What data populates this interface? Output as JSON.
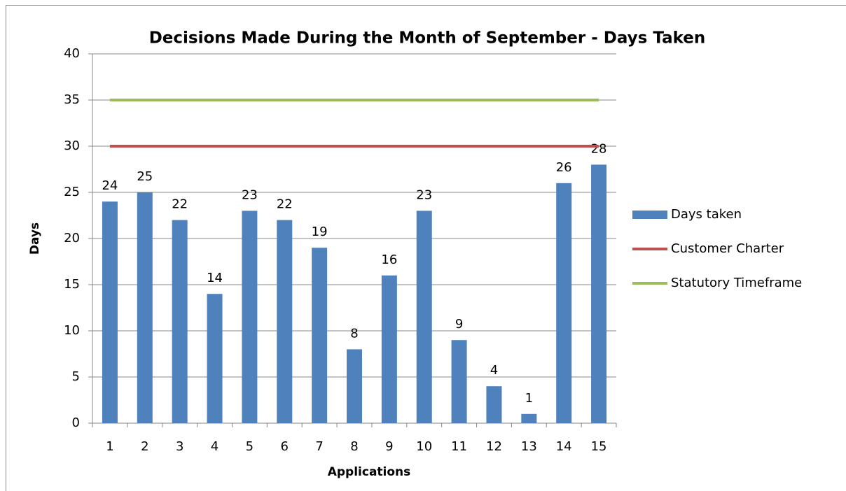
{
  "chart_data": {
    "type": "bar",
    "title": "Decisions Made During the Month of September - Days Taken",
    "xlabel": "Applications",
    "ylabel": "Days",
    "categories": [
      "1",
      "2",
      "3",
      "4",
      "5",
      "6",
      "7",
      "8",
      "9",
      "10",
      "11",
      "12",
      "13",
      "14",
      "15"
    ],
    "series": [
      {
        "name": "Days taken",
        "type": "bar",
        "color": "#4f81bd",
        "values": [
          24,
          25,
          22,
          14,
          23,
          22,
          19,
          8,
          16,
          23,
          9,
          4,
          1,
          26,
          28
        ],
        "data_labels": true
      },
      {
        "name": "Customer Charter",
        "type": "line",
        "color": "#c0504d",
        "values": [
          30,
          30,
          30,
          30,
          30,
          30,
          30,
          30,
          30,
          30,
          30,
          30,
          30,
          30,
          30
        ]
      },
      {
        "name": "Statutory Timeframe",
        "type": "line",
        "color": "#9bbb59",
        "values": [
          35,
          35,
          35,
          35,
          35,
          35,
          35,
          35,
          35,
          35,
          35,
          35,
          35,
          35,
          35
        ]
      }
    ],
    "ylim": [
      0,
      40
    ],
    "yticks": [
      0,
      5,
      10,
      15,
      20,
      25,
      30,
      35,
      40
    ],
    "grid": true,
    "legend": "right"
  }
}
